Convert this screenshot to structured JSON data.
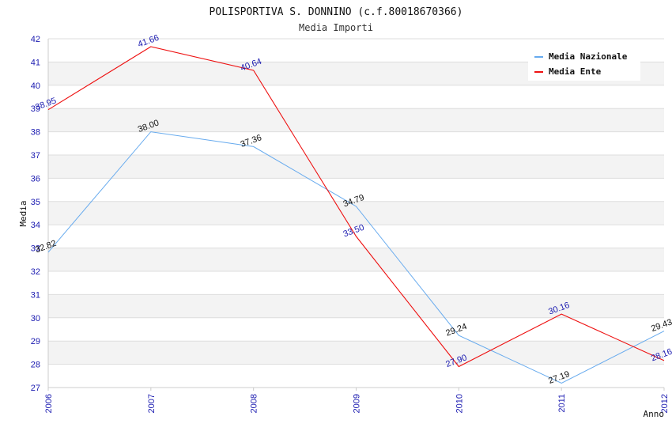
{
  "chart_data": {
    "type": "line",
    "title": "POLISPORTIVA S. DONNINO (c.f.80018670366)",
    "subtitle": "Media Importi",
    "xlabel": "Anno",
    "ylabel": "Media",
    "x": [
      "2006",
      "2007",
      "2008",
      "2009",
      "2010",
      "2011",
      "2012"
    ],
    "ylim": [
      27,
      42
    ],
    "yticks": [
      "27",
      "28",
      "29",
      "30",
      "31",
      "32",
      "33",
      "34",
      "35",
      "36",
      "37",
      "38",
      "39",
      "40",
      "41",
      "42"
    ],
    "grid": "horizontal-bands",
    "legend_position": "top-right",
    "series": [
      {
        "name": "Media Nazionale",
        "color": "#66aaee",
        "label_color": "#111111",
        "values": [
          32.82,
          38.0,
          37.36,
          34.79,
          29.24,
          27.19,
          29.43
        ],
        "labels": [
          "32.82",
          "38.00",
          "37.36",
          "34.79",
          "29.24",
          "27.19",
          "29.43"
        ]
      },
      {
        "name": "Media Ente",
        "color": "#ee1111",
        "label_color": "#1a1ab0",
        "values": [
          38.95,
          41.66,
          40.64,
          33.5,
          27.9,
          30.16,
          28.16
        ],
        "labels": [
          "38.95",
          "41.66",
          "40.64",
          "33.50",
          "27.90",
          "30.16",
          "28.16"
        ]
      }
    ]
  }
}
